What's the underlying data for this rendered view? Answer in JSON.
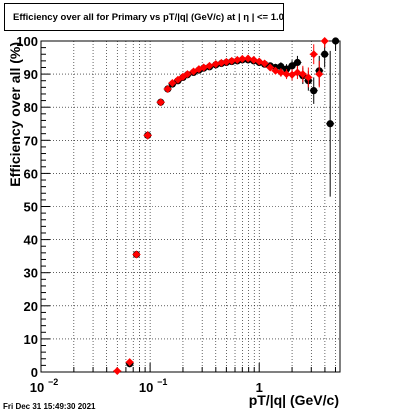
{
  "timestamp": "Fri Dec 31 15:49:30 2021",
  "chart_data": {
    "type": "scatter",
    "title": "Efficiency over all for Primary vs pT/|q| (GeV/c) at |  η | <= 1.0",
    "xlabel": "pT/|q| (GeV/c)",
    "ylabel": "Efficiency over all (%)",
    "xscale": "log",
    "xlim": [
      0.01,
      5.5
    ],
    "ylim": [
      0,
      100
    ],
    "grid": true,
    "x_ticks": [
      {
        "value": 0.01,
        "base": "10",
        "exp": "−2"
      },
      {
        "value": 0.1,
        "base": "10",
        "exp": "−1"
      },
      {
        "value": 1,
        "base": "1",
        "exp": ""
      }
    ],
    "y_ticks": [
      "0",
      "10",
      "20",
      "30",
      "40",
      "50",
      "60",
      "70",
      "80",
      "90",
      "100"
    ],
    "series": [
      {
        "color": "#000000",
        "marker": "circle",
        "points": [
          {
            "x": 0.065,
            "y": 2.5,
            "err": 1.0
          },
          {
            "x": 0.075,
            "y": 35.5,
            "err": 1.0
          },
          {
            "x": 0.095,
            "y": 71.5,
            "err": 1.2
          },
          {
            "x": 0.125,
            "y": 81.5,
            "err": 1.0
          },
          {
            "x": 0.145,
            "y": 85.5,
            "err": 0.8
          },
          {
            "x": 0.16,
            "y": 87.0,
            "err": 0.8
          },
          {
            "x": 0.18,
            "y": 88.0,
            "err": 0.7
          },
          {
            "x": 0.2,
            "y": 89.0,
            "err": 0.7
          },
          {
            "x": 0.22,
            "y": 89.8,
            "err": 0.7
          },
          {
            "x": 0.25,
            "y": 90.5,
            "err": 0.6
          },
          {
            "x": 0.28,
            "y": 91.2,
            "err": 0.6
          },
          {
            "x": 0.31,
            "y": 91.8,
            "err": 0.6
          },
          {
            "x": 0.35,
            "y": 92.2,
            "err": 0.6
          },
          {
            "x": 0.4,
            "y": 92.8,
            "err": 0.6
          },
          {
            "x": 0.45,
            "y": 93.2,
            "err": 0.6
          },
          {
            "x": 0.5,
            "y": 93.5,
            "err": 0.6
          },
          {
            "x": 0.56,
            "y": 93.8,
            "err": 0.6
          },
          {
            "x": 0.63,
            "y": 94.0,
            "err": 0.6
          },
          {
            "x": 0.7,
            "y": 94.3,
            "err": 0.6
          },
          {
            "x": 0.79,
            "y": 94.3,
            "err": 0.7
          },
          {
            "x": 0.89,
            "y": 94.0,
            "err": 0.7
          },
          {
            "x": 1.0,
            "y": 93.5,
            "err": 0.8
          },
          {
            "x": 1.12,
            "y": 93.0,
            "err": 0.9
          },
          {
            "x": 1.26,
            "y": 92.5,
            "err": 1.0
          },
          {
            "x": 1.41,
            "y": 92.0,
            "err": 1.1
          },
          {
            "x": 1.58,
            "y": 92.3,
            "err": 1.3
          },
          {
            "x": 1.78,
            "y": 91.5,
            "err": 1.5
          },
          {
            "x": 2.0,
            "y": 92.5,
            "err": 1.7
          },
          {
            "x": 2.24,
            "y": 93.5,
            "err": 2.0
          },
          {
            "x": 2.51,
            "y": 89.5,
            "err": 2.5
          },
          {
            "x": 2.82,
            "y": 88.0,
            "err": 3.0
          },
          {
            "x": 3.16,
            "y": 85.0,
            "err": 4.0
          },
          {
            "x": 3.55,
            "y": 91.0,
            "err": 4.5
          },
          {
            "x": 3.98,
            "y": 96.0,
            "err": 4.0
          },
          {
            "x": 4.47,
            "y": 75.0,
            "err": 22.0
          },
          {
            "x": 5.01,
            "y": 100.0,
            "err": 3.0
          }
        ]
      },
      {
        "color": "#ff0000",
        "marker": "diamond",
        "points": [
          {
            "x": 0.05,
            "y": 0.3,
            "err": 0.5
          },
          {
            "x": 0.065,
            "y": 3.0,
            "err": 0.8
          },
          {
            "x": 0.075,
            "y": 35.5,
            "err": 1.0
          },
          {
            "x": 0.095,
            "y": 71.5,
            "err": 1.2
          },
          {
            "x": 0.125,
            "y": 81.5,
            "err": 1.0
          },
          {
            "x": 0.145,
            "y": 85.5,
            "err": 0.8
          },
          {
            "x": 0.16,
            "y": 87.3,
            "err": 0.8
          },
          {
            "x": 0.18,
            "y": 88.3,
            "err": 0.7
          },
          {
            "x": 0.2,
            "y": 89.2,
            "err": 0.7
          },
          {
            "x": 0.22,
            "y": 90.0,
            "err": 0.7
          },
          {
            "x": 0.25,
            "y": 90.8,
            "err": 0.6
          },
          {
            "x": 0.28,
            "y": 91.5,
            "err": 0.6
          },
          {
            "x": 0.31,
            "y": 92.0,
            "err": 0.6
          },
          {
            "x": 0.35,
            "y": 92.5,
            "err": 0.6
          },
          {
            "x": 0.4,
            "y": 93.0,
            "err": 0.6
          },
          {
            "x": 0.45,
            "y": 93.4,
            "err": 0.6
          },
          {
            "x": 0.5,
            "y": 93.7,
            "err": 0.6
          },
          {
            "x": 0.56,
            "y": 94.0,
            "err": 0.6
          },
          {
            "x": 0.63,
            "y": 94.3,
            "err": 0.6
          },
          {
            "x": 0.7,
            "y": 94.6,
            "err": 0.6
          },
          {
            "x": 0.79,
            "y": 94.7,
            "err": 0.7
          },
          {
            "x": 0.89,
            "y": 94.3,
            "err": 0.7
          },
          {
            "x": 1.0,
            "y": 93.8,
            "err": 0.8
          },
          {
            "x": 1.12,
            "y": 93.2,
            "err": 0.9
          },
          {
            "x": 1.26,
            "y": 92.0,
            "err": 1.0
          },
          {
            "x": 1.41,
            "y": 91.0,
            "err": 1.1
          },
          {
            "x": 1.58,
            "y": 90.5,
            "err": 1.3
          },
          {
            "x": 1.78,
            "y": 90.0,
            "err": 1.5
          },
          {
            "x": 2.0,
            "y": 89.8,
            "err": 1.7
          },
          {
            "x": 2.24,
            "y": 90.5,
            "err": 2.0
          },
          {
            "x": 2.51,
            "y": 90.0,
            "err": 2.5
          },
          {
            "x": 2.82,
            "y": 89.0,
            "err": 3.0
          },
          {
            "x": 3.16,
            "y": 96.0,
            "err": 3.0
          },
          {
            "x": 3.55,
            "y": 90.0,
            "err": 4.0
          },
          {
            "x": 3.98,
            "y": 100.0,
            "err": 2.0
          }
        ]
      }
    ]
  }
}
